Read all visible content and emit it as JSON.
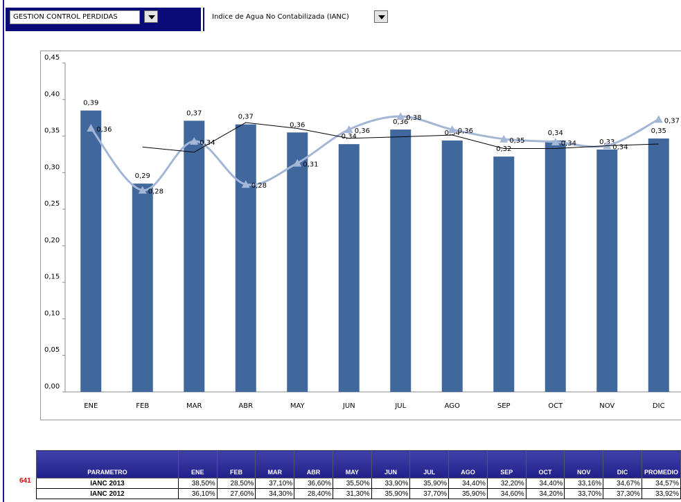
{
  "header": {
    "selector_1": "GESTION CONTROL PERDIDAS",
    "selector_2": "Indice de Agua No Contabilizada (IANC)"
  },
  "chart_data": {
    "type": "bar",
    "categories": [
      "ENE",
      "FEB",
      "MAR",
      "ABR",
      "MAY",
      "JUN",
      "JUL",
      "AGO",
      "SEP",
      "OCT",
      "NOV",
      "DIC"
    ],
    "series": [
      {
        "type": "bar",
        "color": "#41689c",
        "values": [
          0.385,
          0.285,
          0.371,
          0.366,
          0.355,
          0.339,
          0.359,
          0.344,
          0.322,
          0.344,
          0.3316,
          0.3467
        ],
        "value_labels": [
          "0,39",
          "0,29",
          "0,37",
          "0,37",
          "0,36",
          "0,34",
          "0,36",
          "0,34",
          "0,32",
          "0,34",
          "0,33",
          "0,35"
        ]
      },
      {
        "type": "line",
        "smooth": true,
        "marker": "triangle",
        "color": "#a4b6d6",
        "values": [
          0.361,
          0.276,
          0.343,
          0.284,
          0.313,
          0.359,
          0.377,
          0.359,
          0.346,
          0.342,
          0.337,
          0.373
        ],
        "value_labels": [
          "0,36",
          "0,28",
          "0,34",
          "0,28",
          "0,31",
          "0,36",
          "0,38",
          "0,36",
          "0,35",
          "0,34",
          "0,34",
          "0,37"
        ]
      },
      {
        "type": "line",
        "smooth": false,
        "color": "#000000",
        "values": [
          null,
          0.335,
          0.328,
          0.3685,
          0.3605,
          0.347,
          0.349,
          0.3515,
          0.333,
          0.333,
          0.3368,
          0.3392
        ]
      }
    ],
    "ylim": [
      0,
      0.45
    ],
    "yticks": [
      {
        "value": 0,
        "label": "0,00"
      },
      {
        "value": 0.05,
        "label": "0,05"
      },
      {
        "value": 0.1,
        "label": "0,10"
      },
      {
        "value": 0.15,
        "label": "0,15"
      },
      {
        "value": 0.2,
        "label": "0,20"
      },
      {
        "value": 0.25,
        "label": "0,25"
      },
      {
        "value": 0.3,
        "label": "0,30"
      },
      {
        "value": 0.35,
        "label": "0,35"
      },
      {
        "value": 0.4,
        "label": "0,40"
      },
      {
        "value": 0.45,
        "label": "0,45"
      }
    ],
    "grid": false
  },
  "table": {
    "row_number": "641",
    "columns": [
      "PARAMETRO",
      "ENE",
      "FEB",
      "MAR",
      "ABR",
      "MAY",
      "JUN",
      "JUL",
      "AGO",
      "SEP",
      "OCT",
      "NOV",
      "DIC",
      "PROMEDIO"
    ],
    "rows": [
      [
        "IANC 2013",
        "38,50%",
        "28,50%",
        "37,10%",
        "36,60%",
        "35,50%",
        "33,90%",
        "35,90%",
        "34,40%",
        "32,20%",
        "34,40%",
        "33,16%",
        "34,67%",
        "34,57%"
      ],
      [
        "IANC 2012",
        "36,10%",
        "27,60%",
        "34,30%",
        "28,40%",
        "31,30%",
        "35,90%",
        "37,70%",
        "35,90%",
        "34,60%",
        "34,20%",
        "33,70%",
        "37,30%",
        "33,92%"
      ]
    ]
  }
}
